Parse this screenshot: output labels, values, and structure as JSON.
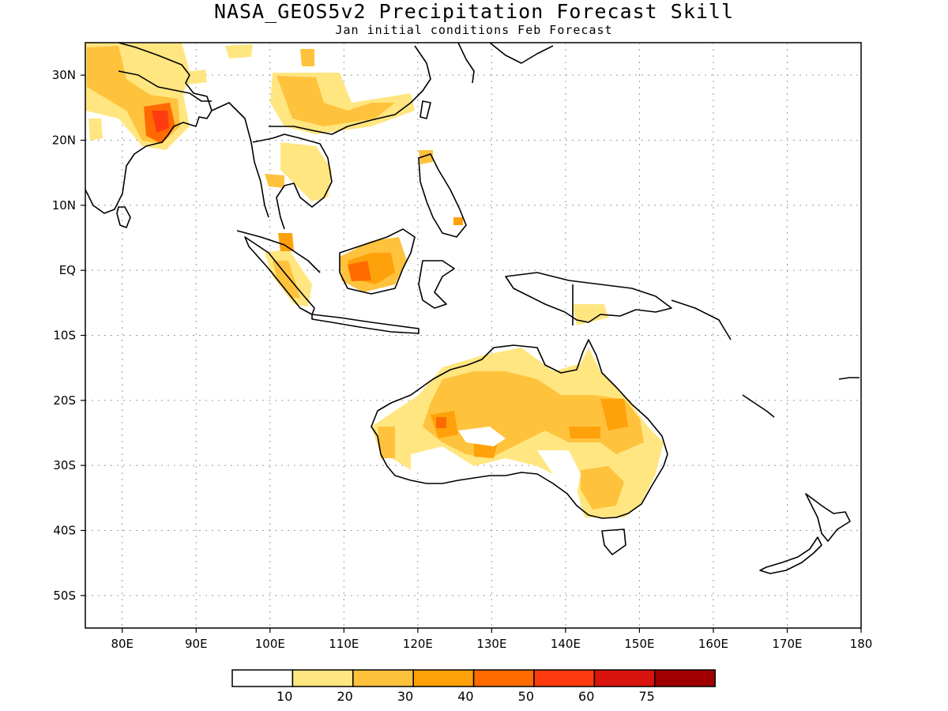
{
  "title": "NASA_GEOS5v2 Precipitation Forecast Skill",
  "subtitle": "Jan initial conditions  Feb Forecast",
  "map": {
    "lon_range": [
      75,
      180
    ],
    "lat_range": [
      -55,
      35
    ],
    "lon_ticks": [
      {
        "value": 80,
        "label": "80E"
      },
      {
        "value": 90,
        "label": "90E"
      },
      {
        "value": 100,
        "label": "100E"
      },
      {
        "value": 110,
        "label": "110E"
      },
      {
        "value": 120,
        "label": "120E"
      },
      {
        "value": 130,
        "label": "130E"
      },
      {
        "value": 140,
        "label": "140E"
      },
      {
        "value": 150,
        "label": "150E"
      },
      {
        "value": 160,
        "label": "160E"
      },
      {
        "value": 170,
        "label": "170E"
      },
      {
        "value": 180,
        "label": "180"
      }
    ],
    "lat_ticks": [
      {
        "value": 30,
        "label": "30N"
      },
      {
        "value": 20,
        "label": "20N"
      },
      {
        "value": 10,
        "label": "10N"
      },
      {
        "value": 0,
        "label": "EQ"
      },
      {
        "value": -10,
        "label": "10S"
      },
      {
        "value": -20,
        "label": "20S"
      },
      {
        "value": -30,
        "label": "30S"
      },
      {
        "value": -40,
        "label": "40S"
      },
      {
        "value": -50,
        "label": "50S"
      }
    ],
    "grid": true
  },
  "colorbar": {
    "labels": [
      "10",
      "20",
      "30",
      "40",
      "50",
      "60",
      "75"
    ],
    "colors": [
      "#ffffff",
      "#ffe680",
      "#ffc23d",
      "#ffa10a",
      "#ff6b00",
      "#ff3c0f",
      "#d9140f",
      "#a00000"
    ]
  },
  "colors": {
    "level1": "#ffe680",
    "level2": "#ffc23d",
    "level3": "#ffa10a",
    "level4": "#ff6b00",
    "level5": "#ff3c0f",
    "coast": "#000000"
  }
}
